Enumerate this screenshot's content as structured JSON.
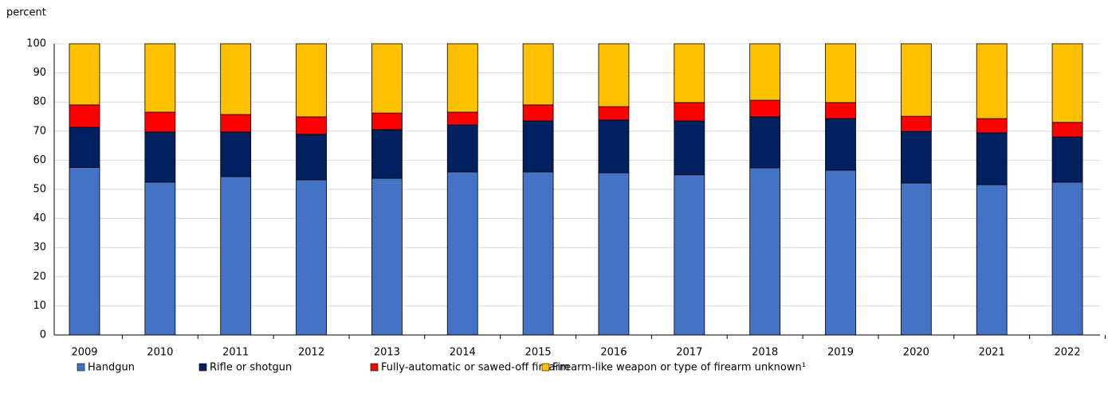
{
  "chart_data": {
    "type": "stacked_bar",
    "y_label": "percent",
    "categories": [
      "2009",
      "2010",
      "2011",
      "2012",
      "2013",
      "2014",
      "2015",
      "2016",
      "2017",
      "2018",
      "2019",
      "2020",
      "2021",
      "2022"
    ],
    "series": [
      {
        "name": "Handgun",
        "color": "#4472c4",
        "values": [
          57.5,
          52.5,
          54.4,
          53.3,
          53.8,
          56.0,
          56.0,
          55.7,
          55.0,
          57.4,
          56.6,
          52.2,
          51.6,
          52.5
        ]
      },
      {
        "name": "Rifle or shotgun",
        "color": "#002060",
        "values": [
          13.8,
          17.2,
          15.3,
          15.6,
          16.7,
          16.1,
          17.5,
          18.1,
          18.5,
          17.5,
          17.7,
          17.7,
          17.8,
          15.5
        ]
      },
      {
        "name": "Fully-automatic or sawed-off firearm",
        "color": "#ff0000",
        "values": [
          7.7,
          6.8,
          6.0,
          6.0,
          5.7,
          4.4,
          5.5,
          4.6,
          6.3,
          5.7,
          5.5,
          5.2,
          4.9,
          5.0
        ]
      },
      {
        "name": "Firearm-like weapon or type of firearm unknown¹",
        "color": "#ffc000",
        "values": [
          21.0,
          23.5,
          24.3,
          25.1,
          23.8,
          23.5,
          21.0,
          21.6,
          20.2,
          19.4,
          20.2,
          24.9,
          25.7,
          27.0
        ]
      }
    ],
    "ylim": [
      0,
      100
    ],
    "yticks": [
      0,
      10,
      20,
      30,
      40,
      50,
      60,
      70,
      80,
      90,
      100
    ],
    "grid": true,
    "legend": "bottom"
  }
}
